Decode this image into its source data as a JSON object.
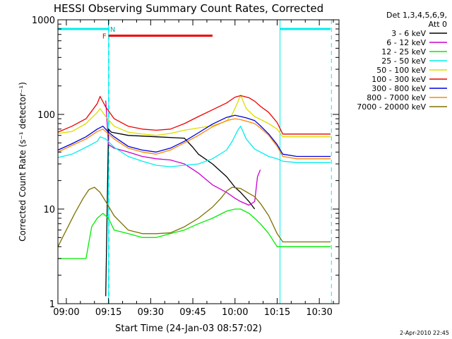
{
  "chart_data": {
    "type": "line",
    "title": "HESSI Observing Summary Count Rates, Corrected",
    "xlabel": "Start Time (24-Jan-03 08:57:02)",
    "ylabel": "Corrected Count Rate (s⁻¹ detector⁻¹)",
    "x_unit": "minutes after 08:57:02",
    "xlim": [
      0,
      100
    ],
    "ylim": [
      1,
      1000
    ],
    "yscale": "log",
    "x_ticks": [
      {
        "label": "09:00",
        "value": 3
      },
      {
        "label": "09:15",
        "value": 18
      },
      {
        "label": "09:30",
        "value": 33
      },
      {
        "label": "09:45",
        "value": 48
      },
      {
        "label": "10:00",
        "value": 63
      },
      {
        "label": "10:15",
        "value": 78
      },
      {
        "label": "10:30",
        "value": 93
      }
    ],
    "y_ticks": [
      {
        "label": "1",
        "value": 1
      },
      {
        "label": "10",
        "value": 10
      },
      {
        "label": "100",
        "value": 100
      },
      {
        "label": "1000",
        "value": 1000
      }
    ],
    "legend_header": [
      "Det 1,3,4,5,6,9,",
      "Att 0"
    ],
    "legend_position": "right",
    "footer_date": "2-Apr-2010 22:45",
    "series": [
      {
        "name": "3 - 6 keV",
        "color": "#000000",
        "x": [
          17,
          18,
          19,
          25,
          35,
          45,
          48,
          50,
          55,
          60,
          63,
          65,
          68,
          70
        ],
        "y": [
          1.2,
          70,
          65,
          60,
          58,
          56,
          45,
          38,
          30,
          22,
          17,
          15,
          12,
          10
        ]
      },
      {
        "name": "6 - 12 keV",
        "color": "#cc00cc",
        "x": [
          17,
          18,
          20,
          25,
          30,
          35,
          40,
          45,
          50,
          55,
          60,
          63,
          65,
          68,
          70,
          71,
          72
        ],
        "y": [
          140,
          48,
          44,
          40,
          36,
          34,
          33,
          30,
          24,
          18,
          15,
          13,
          12,
          11,
          12,
          22,
          26
        ]
      },
      {
        "name": "12 - 25 keV",
        "color": "#00ee00",
        "x": [
          0,
          10,
          12,
          14,
          16,
          18,
          20,
          25,
          30,
          35,
          40,
          45,
          50,
          55,
          60,
          63,
          65,
          68,
          70,
          72,
          75,
          78,
          80,
          85,
          90,
          95,
          97
        ],
        "y": [
          3,
          3,
          6.5,
          8,
          9,
          8,
          6,
          5.5,
          5,
          5,
          5.5,
          6,
          7,
          8,
          9.5,
          10,
          10,
          9,
          8,
          7,
          5.5,
          4,
          4,
          4,
          4,
          4,
          4
        ]
      },
      {
        "name": "25 - 50 keV",
        "color": "#00eeee",
        "x": [
          0,
          5,
          10,
          14,
          15,
          17,
          20,
          25,
          30,
          35,
          40,
          45,
          50,
          55,
          60,
          62,
          64,
          65,
          67,
          70,
          75,
          78,
          80,
          85,
          90,
          95,
          97
        ],
        "y": [
          35,
          38,
          45,
          52,
          58,
          55,
          45,
          36,
          32,
          29,
          28,
          29,
          30,
          34,
          42,
          52,
          68,
          75,
          55,
          43,
          36,
          34,
          32,
          31,
          31,
          31,
          31
        ]
      },
      {
        "name": "50 - 100 keV",
        "color": "#dddd00",
        "x": [
          0,
          5,
          10,
          14,
          15,
          17,
          20,
          25,
          30,
          35,
          40,
          45,
          50,
          55,
          60,
          62,
          64,
          65,
          67,
          70,
          75,
          78,
          80,
          85,
          90,
          95,
          97
        ],
        "y": [
          63,
          66,
          80,
          105,
          115,
          95,
          75,
          65,
          62,
          60,
          63,
          68,
          72,
          76,
          85,
          100,
          135,
          160,
          115,
          95,
          80,
          70,
          58,
          58,
          58,
          58,
          58
        ]
      },
      {
        "name": "100 - 300 keV",
        "color": "#ee0000",
        "x": [
          0,
          5,
          10,
          14,
          15,
          17,
          20,
          25,
          30,
          35,
          40,
          45,
          50,
          55,
          60,
          63,
          65,
          68,
          70,
          72,
          75,
          78,
          80,
          85,
          90,
          95,
          97
        ],
        "y": [
          65,
          75,
          90,
          130,
          155,
          120,
          90,
          75,
          70,
          68,
          70,
          80,
          95,
          112,
          132,
          152,
          158,
          150,
          138,
          122,
          105,
          82,
          62,
          62,
          62,
          62,
          62
        ]
      },
      {
        "name": "300 - 800 keV",
        "color": "#0000dd",
        "x": [
          0,
          5,
          10,
          14,
          16,
          18,
          20,
          25,
          30,
          35,
          40,
          45,
          50,
          55,
          60,
          63,
          65,
          67,
          70,
          72,
          75,
          78,
          80,
          85,
          90,
          95,
          97
        ],
        "y": [
          42,
          49,
          58,
          70,
          75,
          65,
          58,
          46,
          42,
          40,
          44,
          52,
          64,
          79,
          93,
          98,
          95,
          92,
          86,
          76,
          62,
          48,
          38,
          36,
          36,
          36,
          36
        ]
      },
      {
        "name": "800 - 7000 keV",
        "color": "#ff8800",
        "x": [
          0,
          5,
          10,
          14,
          16,
          18,
          20,
          25,
          30,
          35,
          40,
          45,
          50,
          55,
          60,
          63,
          65,
          67,
          70,
          72,
          75,
          78,
          80,
          85,
          90,
          95,
          97
        ],
        "y": [
          40,
          47,
          55,
          66,
          70,
          62,
          55,
          44,
          40,
          38,
          42,
          50,
          60,
          74,
          86,
          90,
          88,
          85,
          80,
          72,
          60,
          46,
          36,
          34,
          34,
          34,
          34
        ]
      },
      {
        "name": "7000 - 20000 keV",
        "color": "#807000",
        "x": [
          0,
          3,
          6,
          9,
          11,
          13,
          15,
          17,
          20,
          25,
          30,
          35,
          40,
          45,
          50,
          55,
          58,
          60,
          62,
          65,
          67,
          70,
          72,
          75,
          78,
          80,
          85,
          90,
          95,
          97
        ],
        "y": [
          4,
          6,
          9,
          13,
          16,
          17,
          15,
          12,
          8.5,
          6,
          5.5,
          5.5,
          5.6,
          6.5,
          8,
          10.5,
          13,
          15.5,
          17,
          16.5,
          15.2,
          13.5,
          11.5,
          8.5,
          5.5,
          4.5,
          4.5,
          4.5,
          4.5,
          4.5
        ]
      }
    ],
    "overlays": {
      "attenuator_bars": [
        {
          "x_from": 0,
          "x_to": 18,
          "y": 800,
          "color": "#00eeee"
        },
        {
          "x_from": 79,
          "x_to": 97,
          "y": 800,
          "color": "#00eeee"
        }
      ],
      "flag_bars": [
        {
          "label": "F",
          "x_from": 18,
          "x_to": 55,
          "y": 680,
          "color": "#ee0000"
        }
      ],
      "flag_labels": [
        {
          "label": "N",
          "x": 19.5,
          "y": 800,
          "color": "#00aaaa"
        }
      ],
      "solid_vlines": [
        {
          "x": 18
        },
        {
          "x": 79
        }
      ],
      "dashed_vlines": [
        {
          "x": 18.2
        },
        {
          "x": 97.3
        }
      ],
      "vline_color": "#00eeee"
    }
  }
}
